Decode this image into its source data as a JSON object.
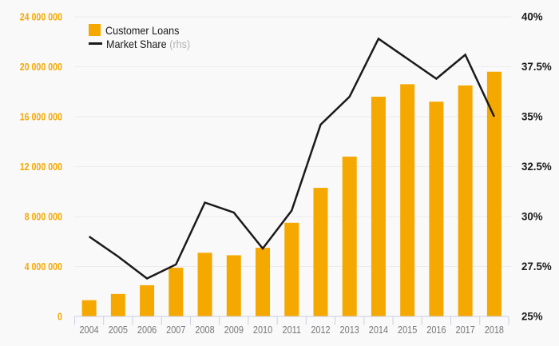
{
  "legend": {
    "items": [
      {
        "label": "Customer Loans",
        "suffix": "",
        "swatch": "bar",
        "color": "#F5A800"
      },
      {
        "label": "Market Share",
        "suffix": "(rhs)",
        "swatch": "line",
        "color": "#1a1a1a"
      }
    ]
  },
  "chart_data": {
    "type": "combo-bar-line",
    "categories": [
      "2004",
      "2005",
      "2006",
      "2007",
      "2008",
      "2009",
      "2010",
      "2011",
      "2012",
      "2013",
      "2014",
      "2015",
      "2016",
      "2017",
      "2018"
    ],
    "series": [
      {
        "name": "Customer Loans",
        "type": "bar",
        "axis": "left",
        "color": "#F5A800",
        "values": [
          1300000,
          1800000,
          2500000,
          3900000,
          5100000,
          4900000,
          5500000,
          7500000,
          10300000,
          12800000,
          17600000,
          18600000,
          17200000,
          18500000,
          19600000
        ]
      },
      {
        "name": "Market Share (rhs)",
        "type": "line",
        "axis": "right",
        "color": "#1a1a1a",
        "values": [
          29.0,
          28.0,
          26.9,
          27.6,
          30.7,
          30.2,
          28.4,
          30.3,
          34.6,
          36.0,
          38.9,
          37.9,
          36.9,
          38.1,
          35.0
        ]
      }
    ],
    "left_axis": {
      "min": 0,
      "max": 24000000,
      "tick_labels": [
        "0",
        "4 000 000",
        "8 000 000",
        "12 000 000",
        "16 000 000",
        "20 000 000",
        "24 000 000"
      ],
      "color": "#F5A800"
    },
    "right_axis": {
      "min": 25,
      "max": 40,
      "tick_labels": [
        "25%",
        "27.5%",
        "30%",
        "32.5%",
        "35%",
        "37.5%",
        "40%"
      ],
      "color": "#1a1a1a"
    },
    "x_axis": {
      "label_color": "#77787b",
      "line_color": "#c9cfe0"
    },
    "grid": {
      "show": true,
      "color": "#ececec"
    },
    "background": "#f9f9f9",
    "legend_position": "top-left"
  }
}
